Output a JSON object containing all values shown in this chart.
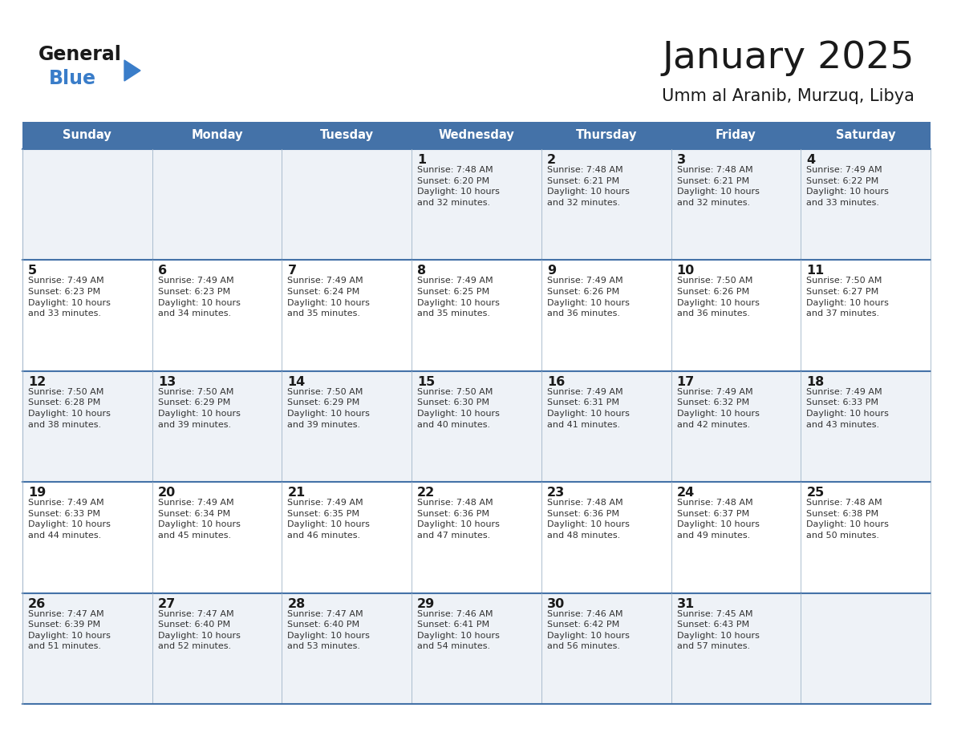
{
  "title": "January 2025",
  "subtitle": "Umm al Aranib, Murzuq, Libya",
  "header_bg": "#4472a8",
  "header_text": "#ffffff",
  "border_color": "#4472a8",
  "inner_border_color": "#a0b4c8",
  "day_names": [
    "Sunday",
    "Monday",
    "Tuesday",
    "Wednesday",
    "Thursday",
    "Friday",
    "Saturday"
  ],
  "title_color": "#1a1a1a",
  "subtitle_color": "#1a1a1a",
  "day_number_color": "#1a1a1a",
  "cell_text_color": "#333333",
  "row1_bg": "#eef2f7",
  "row2_bg": "#ffffff",
  "calendar": [
    [
      {
        "day": "",
        "text": ""
      },
      {
        "day": "",
        "text": ""
      },
      {
        "day": "",
        "text": ""
      },
      {
        "day": "1",
        "text": "Sunrise: 7:48 AM\nSunset: 6:20 PM\nDaylight: 10 hours\nand 32 minutes."
      },
      {
        "day": "2",
        "text": "Sunrise: 7:48 AM\nSunset: 6:21 PM\nDaylight: 10 hours\nand 32 minutes."
      },
      {
        "day": "3",
        "text": "Sunrise: 7:48 AM\nSunset: 6:21 PM\nDaylight: 10 hours\nand 32 minutes."
      },
      {
        "day": "4",
        "text": "Sunrise: 7:49 AM\nSunset: 6:22 PM\nDaylight: 10 hours\nand 33 minutes."
      }
    ],
    [
      {
        "day": "5",
        "text": "Sunrise: 7:49 AM\nSunset: 6:23 PM\nDaylight: 10 hours\nand 33 minutes."
      },
      {
        "day": "6",
        "text": "Sunrise: 7:49 AM\nSunset: 6:23 PM\nDaylight: 10 hours\nand 34 minutes."
      },
      {
        "day": "7",
        "text": "Sunrise: 7:49 AM\nSunset: 6:24 PM\nDaylight: 10 hours\nand 35 minutes."
      },
      {
        "day": "8",
        "text": "Sunrise: 7:49 AM\nSunset: 6:25 PM\nDaylight: 10 hours\nand 35 minutes."
      },
      {
        "day": "9",
        "text": "Sunrise: 7:49 AM\nSunset: 6:26 PM\nDaylight: 10 hours\nand 36 minutes."
      },
      {
        "day": "10",
        "text": "Sunrise: 7:50 AM\nSunset: 6:26 PM\nDaylight: 10 hours\nand 36 minutes."
      },
      {
        "day": "11",
        "text": "Sunrise: 7:50 AM\nSunset: 6:27 PM\nDaylight: 10 hours\nand 37 minutes."
      }
    ],
    [
      {
        "day": "12",
        "text": "Sunrise: 7:50 AM\nSunset: 6:28 PM\nDaylight: 10 hours\nand 38 minutes."
      },
      {
        "day": "13",
        "text": "Sunrise: 7:50 AM\nSunset: 6:29 PM\nDaylight: 10 hours\nand 39 minutes."
      },
      {
        "day": "14",
        "text": "Sunrise: 7:50 AM\nSunset: 6:29 PM\nDaylight: 10 hours\nand 39 minutes."
      },
      {
        "day": "15",
        "text": "Sunrise: 7:50 AM\nSunset: 6:30 PM\nDaylight: 10 hours\nand 40 minutes."
      },
      {
        "day": "16",
        "text": "Sunrise: 7:49 AM\nSunset: 6:31 PM\nDaylight: 10 hours\nand 41 minutes."
      },
      {
        "day": "17",
        "text": "Sunrise: 7:49 AM\nSunset: 6:32 PM\nDaylight: 10 hours\nand 42 minutes."
      },
      {
        "day": "18",
        "text": "Sunrise: 7:49 AM\nSunset: 6:33 PM\nDaylight: 10 hours\nand 43 minutes."
      }
    ],
    [
      {
        "day": "19",
        "text": "Sunrise: 7:49 AM\nSunset: 6:33 PM\nDaylight: 10 hours\nand 44 minutes."
      },
      {
        "day": "20",
        "text": "Sunrise: 7:49 AM\nSunset: 6:34 PM\nDaylight: 10 hours\nand 45 minutes."
      },
      {
        "day": "21",
        "text": "Sunrise: 7:49 AM\nSunset: 6:35 PM\nDaylight: 10 hours\nand 46 minutes."
      },
      {
        "day": "22",
        "text": "Sunrise: 7:48 AM\nSunset: 6:36 PM\nDaylight: 10 hours\nand 47 minutes."
      },
      {
        "day": "23",
        "text": "Sunrise: 7:48 AM\nSunset: 6:36 PM\nDaylight: 10 hours\nand 48 minutes."
      },
      {
        "day": "24",
        "text": "Sunrise: 7:48 AM\nSunset: 6:37 PM\nDaylight: 10 hours\nand 49 minutes."
      },
      {
        "day": "25",
        "text": "Sunrise: 7:48 AM\nSunset: 6:38 PM\nDaylight: 10 hours\nand 50 minutes."
      }
    ],
    [
      {
        "day": "26",
        "text": "Sunrise: 7:47 AM\nSunset: 6:39 PM\nDaylight: 10 hours\nand 51 minutes."
      },
      {
        "day": "27",
        "text": "Sunrise: 7:47 AM\nSunset: 6:40 PM\nDaylight: 10 hours\nand 52 minutes."
      },
      {
        "day": "28",
        "text": "Sunrise: 7:47 AM\nSunset: 6:40 PM\nDaylight: 10 hours\nand 53 minutes."
      },
      {
        "day": "29",
        "text": "Sunrise: 7:46 AM\nSunset: 6:41 PM\nDaylight: 10 hours\nand 54 minutes."
      },
      {
        "day": "30",
        "text": "Sunrise: 7:46 AM\nSunset: 6:42 PM\nDaylight: 10 hours\nand 56 minutes."
      },
      {
        "day": "31",
        "text": "Sunrise: 7:45 AM\nSunset: 6:43 PM\nDaylight: 10 hours\nand 57 minutes."
      },
      {
        "day": "",
        "text": ""
      }
    ]
  ]
}
